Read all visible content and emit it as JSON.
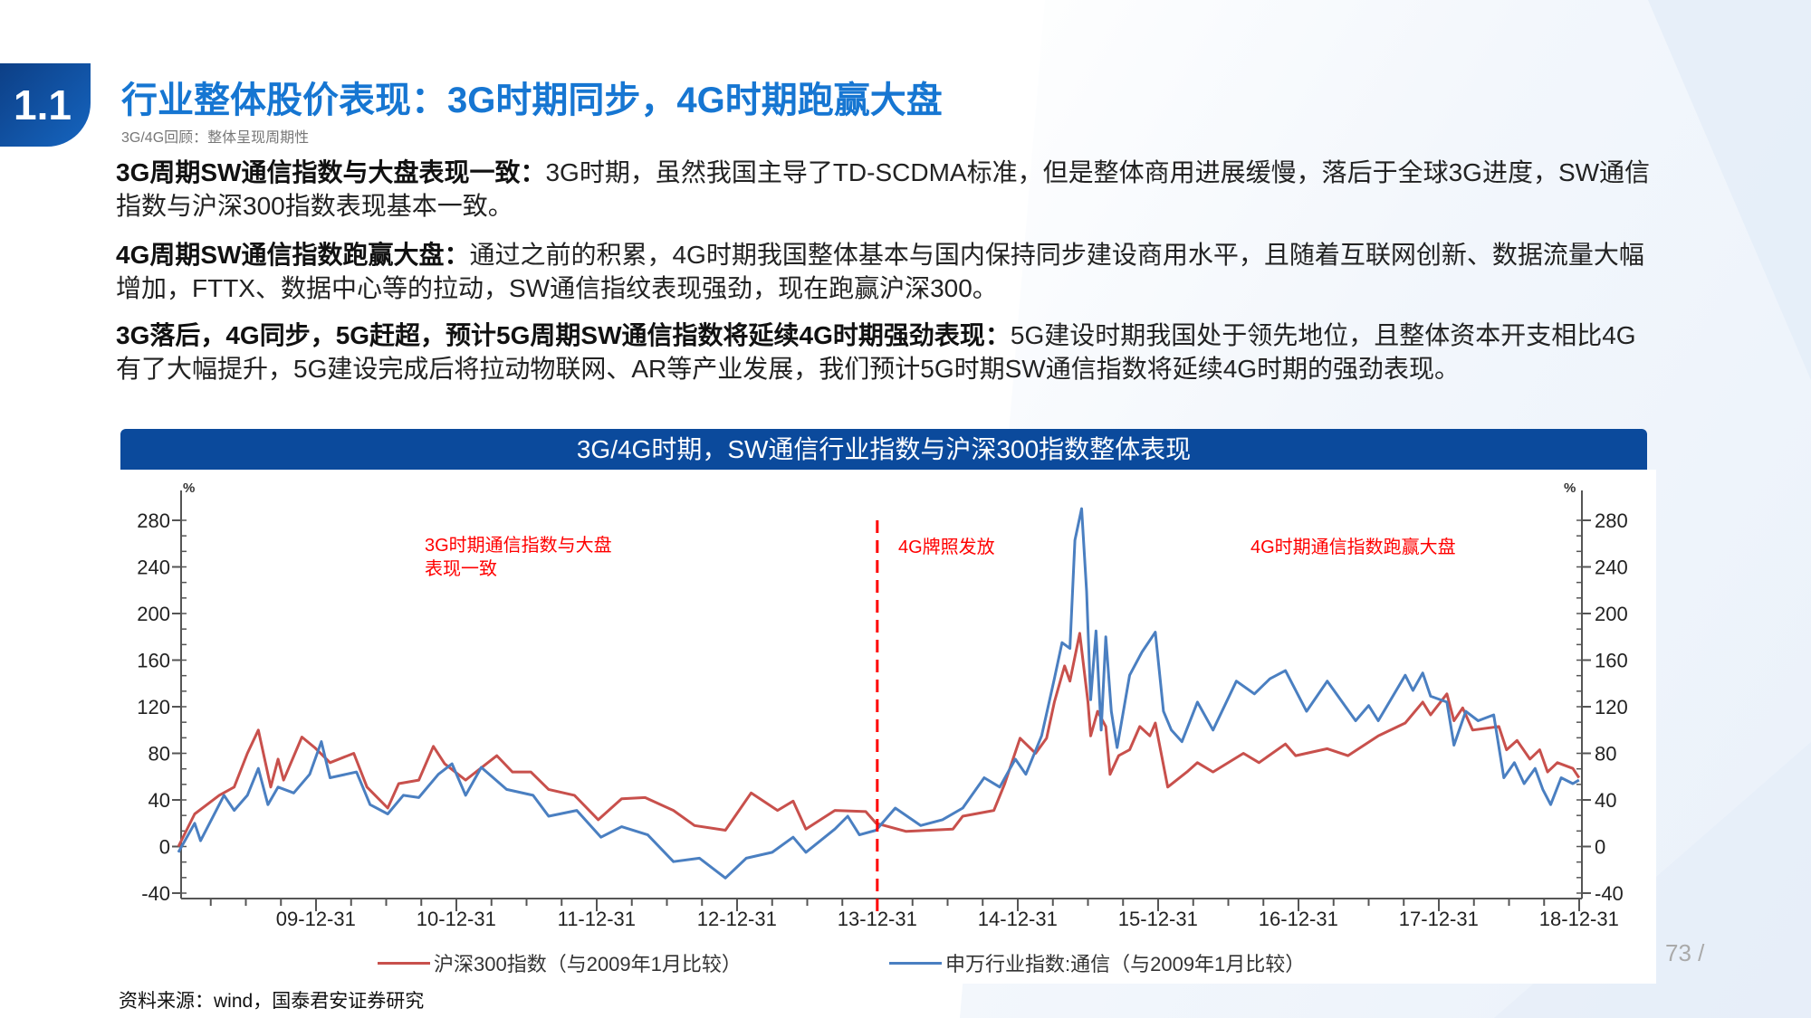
{
  "header": {
    "badge": "1.1",
    "title": "行业整体股价表现：3G时期同步，4G时期跑赢大盘",
    "subtitle": "3G/4G回顾：整体呈现周期性"
  },
  "paragraphs": [
    {
      "bold": "3G周期SW通信指数与大盘表现一致：",
      "text": "3G时期，虽然我国主导了TD-SCDMA标准，但是整体商用进展缓慢，落后于全球3G进度，SW通信指数与沪深300指数表现基本一致。"
    },
    {
      "bold": "4G周期SW通信指数跑赢大盘：",
      "text": "通过之前的积累，4G时期我国整体基本与国内保持同步建设商用水平，且随着互联网创新、数据流量大幅增加，FTTX、数据中心等的拉动，SW通信指纹表现强劲，现在跑赢沪深300。"
    },
    {
      "bold": "3G落后，4G同步，5G赶超，预计5G周期SW通信指数将延续4G时期强劲表现：",
      "text": "5G建设时期我国处于领先地位，且整体资本开支相比4G有了大幅提升，5G建设完成后将拉动物联网、AR等产业发展，我们预计5G时期SW通信指数将延续4G时期的强劲表现。"
    }
  ],
  "chart": {
    "header": "3G/4G时期，SW通信行业指数与沪深300指数整体表现"
  },
  "chart_data": {
    "type": "line",
    "y_unit_left": "%",
    "y_unit_right": "%",
    "ylim": [
      -40,
      300
    ],
    "y_ticks": [
      -40,
      0,
      40,
      80,
      120,
      160,
      200,
      240,
      280
    ],
    "x_tick_labels": [
      "09-12-31",
      "10-12-31",
      "11-12-31",
      "12-12-31",
      "13-12-31",
      "14-12-31",
      "15-12-31",
      "16-12-31",
      "17-12-31",
      "18-12-31"
    ],
    "x_ticks": [
      "2009-12-31",
      "2010-12-31",
      "2011-12-31",
      "2012-12-31",
      "2013-12-31",
      "2014-12-31",
      "2015-12-31",
      "2016-12-31",
      "2017-12-31",
      "2018-12-31"
    ],
    "xlim": [
      "2009-01-01",
      "2018-12-31"
    ],
    "grid": false,
    "legend_position": "bottom",
    "reference_line": {
      "x": "2013-12-31",
      "style": "dashed",
      "color": "#ff0000"
    },
    "annotations": [
      {
        "text": "3G时期通信指数与大盘表现一致",
        "color": "#ff0000"
      },
      {
        "text": "4G牌照发放",
        "color": "#ff0000"
      },
      {
        "text": "4G时期通信指数跑赢大盘",
        "color": "#ff0000"
      }
    ],
    "series": [
      {
        "name": "沪深300指数（与2009年1月比较）",
        "color": "#c8504c",
        "points": [
          [
            "2009-01-08",
            0
          ],
          [
            "2009-02-20",
            28
          ],
          [
            "2009-04-23",
            44
          ],
          [
            "2009-06-01",
            51
          ],
          [
            "2009-07-05",
            80
          ],
          [
            "2009-08-03",
            100
          ],
          [
            "2009-09-05",
            51
          ],
          [
            "2009-09-24",
            75
          ],
          [
            "2009-10-08",
            57
          ],
          [
            "2009-11-25",
            94
          ],
          [
            "2009-12-28",
            85
          ],
          [
            "2010-02-07",
            72
          ],
          [
            "2010-04-08",
            80
          ],
          [
            "2010-05-12",
            51
          ],
          [
            "2010-07-05",
            33
          ],
          [
            "2010-08-03",
            54
          ],
          [
            "2010-09-25",
            57
          ],
          [
            "2010-11-02",
            86
          ],
          [
            "2010-12-01",
            71
          ],
          [
            "2011-01-25",
            57
          ],
          [
            "2011-04-15",
            78
          ],
          [
            "2011-05-25",
            64
          ],
          [
            "2011-07-12",
            64
          ],
          [
            "2011-08-28",
            49
          ],
          [
            "2011-11-04",
            44
          ],
          [
            "2012-01-05",
            23
          ],
          [
            "2012-03-05",
            41
          ],
          [
            "2012-05-05",
            42
          ],
          [
            "2012-07-18",
            31
          ],
          [
            "2012-09-12",
            18
          ],
          [
            "2012-12-01",
            14
          ],
          [
            "2013-02-07",
            46
          ],
          [
            "2013-04-15",
            31
          ],
          [
            "2013-05-25",
            39
          ],
          [
            "2013-06-28",
            15
          ],
          [
            "2013-09-12",
            31
          ],
          [
            "2013-12-01",
            30
          ],
          [
            "2013-12-28",
            20
          ],
          [
            "2014-03-15",
            13
          ],
          [
            "2014-07-15",
            15
          ],
          [
            "2014-08-10",
            26
          ],
          [
            "2014-10-30",
            31
          ],
          [
            "2014-11-28",
            54
          ],
          [
            "2015-01-07",
            93
          ],
          [
            "2015-02-17",
            80
          ],
          [
            "2015-03-15",
            93
          ],
          [
            "2015-04-05",
            124
          ],
          [
            "2015-05-01",
            155
          ],
          [
            "2015-05-15",
            142
          ],
          [
            "2015-06-10",
            183
          ],
          [
            "2015-07-01",
            124
          ],
          [
            "2015-07-08",
            95
          ],
          [
            "2015-07-26",
            116
          ],
          [
            "2015-08-17",
            103
          ],
          [
            "2015-08-28",
            62
          ],
          [
            "2015-09-20",
            78
          ],
          [
            "2015-10-18",
            83
          ],
          [
            "2015-11-14",
            103
          ],
          [
            "2015-12-10",
            95
          ],
          [
            "2015-12-24",
            106
          ],
          [
            "2016-01-26",
            51
          ],
          [
            "2016-03-15",
            64
          ],
          [
            "2016-04-12",
            72
          ],
          [
            "2016-05-22",
            64
          ],
          [
            "2016-08-10",
            80
          ],
          [
            "2016-09-20",
            72
          ],
          [
            "2016-11-28",
            88
          ],
          [
            "2016-12-24",
            78
          ],
          [
            "2017-03-15",
            84
          ],
          [
            "2017-05-08",
            78
          ],
          [
            "2017-07-26",
            95
          ],
          [
            "2017-10-05",
            106
          ],
          [
            "2017-11-20",
            124
          ],
          [
            "2017-12-10",
            113
          ],
          [
            "2018-01-22",
            131
          ],
          [
            "2018-02-10",
            108
          ],
          [
            "2018-03-02",
            119
          ],
          [
            "2018-03-28",
            100
          ],
          [
            "2018-06-05",
            103
          ],
          [
            "2018-06-25",
            83
          ],
          [
            "2018-07-22",
            91
          ],
          [
            "2018-08-25",
            75
          ],
          [
            "2018-09-20",
            83
          ],
          [
            "2018-10-10",
            64
          ],
          [
            "2018-11-05",
            72
          ],
          [
            "2018-12-15",
            67
          ],
          [
            "2018-12-31",
            59
          ]
        ]
      },
      {
        "name": "申万行业指数:通信（与2009年1月比较）",
        "color": "#4a7fc1",
        "points": [
          [
            "2009-01-08",
            -5
          ],
          [
            "2009-02-20",
            20
          ],
          [
            "2009-03-05",
            5
          ],
          [
            "2009-05-05",
            44
          ],
          [
            "2009-06-01",
            31
          ],
          [
            "2009-07-05",
            44
          ],
          [
            "2009-08-03",
            67
          ],
          [
            "2009-08-28",
            36
          ],
          [
            "2009-09-24",
            51
          ],
          [
            "2009-11-04",
            46
          ],
          [
            "2009-12-15",
            62
          ],
          [
            "2010-01-15",
            90
          ],
          [
            "2010-02-07",
            59
          ],
          [
            "2010-04-15",
            64
          ],
          [
            "2010-05-20",
            36
          ],
          [
            "2010-07-05",
            28
          ],
          [
            "2010-08-15",
            44
          ],
          [
            "2010-09-25",
            42
          ],
          [
            "2010-11-15",
            62
          ],
          [
            "2010-12-20",
            71
          ],
          [
            "2011-01-25",
            44
          ],
          [
            "2011-03-05",
            68
          ],
          [
            "2011-05-10",
            49
          ],
          [
            "2011-07-18",
            44
          ],
          [
            "2011-08-28",
            26
          ],
          [
            "2011-11-10",
            31
          ],
          [
            "2012-01-12",
            8
          ],
          [
            "2012-03-05",
            17
          ],
          [
            "2012-05-12",
            10
          ],
          [
            "2012-07-18",
            -13
          ],
          [
            "2012-09-25",
            -10
          ],
          [
            "2012-12-01",
            -27
          ],
          [
            "2013-01-25",
            -10
          ],
          [
            "2013-04-01",
            -5
          ],
          [
            "2013-05-25",
            8
          ],
          [
            "2013-06-28",
            -5
          ],
          [
            "2013-09-12",
            15
          ],
          [
            "2013-10-15",
            26
          ],
          [
            "2013-11-15",
            10
          ],
          [
            "2013-12-28",
            14
          ],
          [
            "2014-02-17",
            33
          ],
          [
            "2014-04-22",
            18
          ],
          [
            "2014-06-18",
            23
          ],
          [
            "2014-08-10",
            33
          ],
          [
            "2014-10-05",
            59
          ],
          [
            "2014-11-15",
            51
          ],
          [
            "2014-12-25",
            75
          ],
          [
            "2015-01-22",
            62
          ],
          [
            "2015-03-02",
            95
          ],
          [
            "2015-04-05",
            144
          ],
          [
            "2015-04-25",
            175
          ],
          [
            "2015-05-15",
            170
          ],
          [
            "2015-05-28",
            263
          ],
          [
            "2015-06-15",
            290
          ],
          [
            "2015-06-28",
            219
          ],
          [
            "2015-07-08",
            126
          ],
          [
            "2015-07-22",
            185
          ],
          [
            "2015-08-05",
            100
          ],
          [
            "2015-08-17",
            180
          ],
          [
            "2015-09-01",
            116
          ],
          [
            "2015-09-16",
            85
          ],
          [
            "2015-10-18",
            147
          ],
          [
            "2015-11-20",
            167
          ],
          [
            "2015-12-24",
            184
          ],
          [
            "2016-01-15",
            116
          ],
          [
            "2016-02-05",
            100
          ],
          [
            "2016-03-02",
            90
          ],
          [
            "2016-04-12",
            124
          ],
          [
            "2016-05-22",
            100
          ],
          [
            "2016-07-22",
            142
          ],
          [
            "2016-09-08",
            131
          ],
          [
            "2016-10-18",
            144
          ],
          [
            "2016-11-28",
            151
          ],
          [
            "2017-01-22",
            116
          ],
          [
            "2017-03-15",
            142
          ],
          [
            "2017-05-28",
            108
          ],
          [
            "2017-07-01",
            121
          ],
          [
            "2017-07-26",
            108
          ],
          [
            "2017-10-05",
            147
          ],
          [
            "2017-10-25",
            134
          ],
          [
            "2017-11-20",
            149
          ],
          [
            "2017-12-10",
            129
          ],
          [
            "2018-01-22",
            124
          ],
          [
            "2018-02-10",
            87
          ],
          [
            "2018-03-10",
            116
          ],
          [
            "2018-04-12",
            108
          ],
          [
            "2018-05-22",
            113
          ],
          [
            "2018-06-18",
            59
          ],
          [
            "2018-07-15",
            72
          ],
          [
            "2018-08-10",
            54
          ],
          [
            "2018-09-08",
            67
          ],
          [
            "2018-09-28",
            49
          ],
          [
            "2018-10-18",
            36
          ],
          [
            "2018-11-15",
            59
          ],
          [
            "2018-12-15",
            54
          ],
          [
            "2018-12-31",
            57
          ]
        ]
      }
    ]
  },
  "legend": [
    {
      "label": "沪深300指数（与2009年1月比较）",
      "color": "#c8504c"
    },
    {
      "label": "申万行业指数:通信（与2009年1月比较）",
      "color": "#4a7fc1"
    }
  ],
  "source": "资料来源：wind，国泰君安证券研究",
  "page_number": "73 /"
}
